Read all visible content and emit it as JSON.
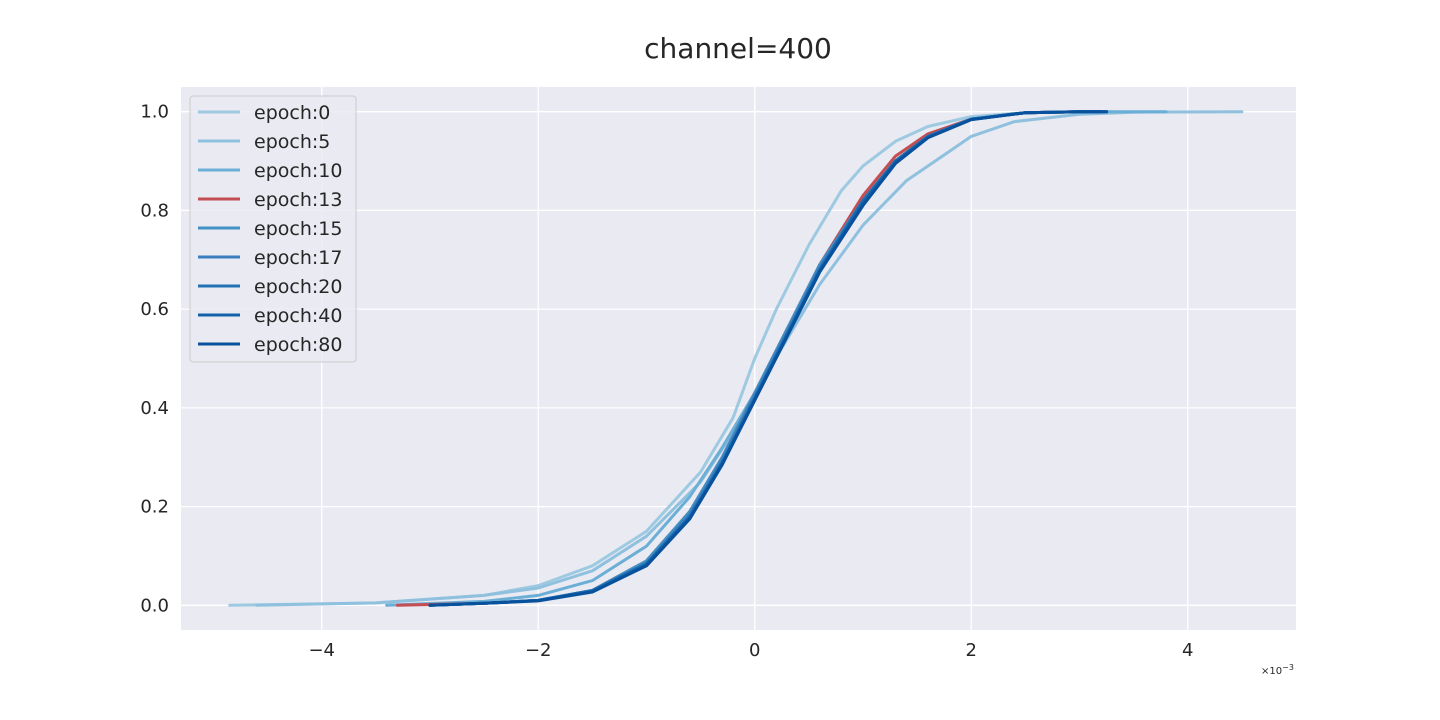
{
  "chart_data": {
    "type": "line",
    "title": "channel=400",
    "xlabel": "",
    "ylabel": "",
    "xlim": [
      -5.3,
      5.0
    ],
    "ylim": [
      -0.05,
      1.05
    ],
    "x_offset_label": "×10",
    "x_offset_exponent": "−3",
    "xticks": [
      -4,
      -2,
      0,
      2,
      4
    ],
    "xtick_labels": [
      "−4",
      "−2",
      "0",
      "2",
      "4"
    ],
    "yticks": [
      0.0,
      0.2,
      0.4,
      0.6,
      0.8,
      1.0
    ],
    "ytick_labels": [
      "0.0",
      "0.2",
      "0.4",
      "0.6",
      "0.8",
      "1.0"
    ],
    "grid": true,
    "legend_position": "top-left",
    "series": [
      {
        "name": "epoch:0",
        "color": "#9ecae1",
        "x": [
          -4.85,
          -3.5,
          -2.5,
          -2.0,
          -1.5,
          -1.0,
          -0.5,
          -0.2,
          0.0,
          0.2,
          0.5,
          0.8,
          1.0,
          1.3,
          1.6,
          2.0,
          2.5,
          3.0,
          3.3
        ],
        "y": [
          0.0,
          0.005,
          0.02,
          0.04,
          0.08,
          0.15,
          0.27,
          0.38,
          0.5,
          0.6,
          0.73,
          0.84,
          0.89,
          0.94,
          0.97,
          0.99,
          0.998,
          1.0,
          1.0
        ]
      },
      {
        "name": "epoch:5",
        "color": "#8fc1de",
        "x": [
          -4.6,
          -3.5,
          -2.5,
          -2.0,
          -1.5,
          -1.0,
          -0.5,
          -0.2,
          0.0,
          0.3,
          0.6,
          1.0,
          1.4,
          1.8,
          2.0,
          2.4,
          3.0,
          3.5,
          4.5
        ],
        "y": [
          0.0,
          0.005,
          0.02,
          0.035,
          0.07,
          0.14,
          0.25,
          0.35,
          0.43,
          0.54,
          0.65,
          0.77,
          0.86,
          0.92,
          0.95,
          0.98,
          0.995,
          0.999,
          1.0
        ]
      },
      {
        "name": "epoch:10",
        "color": "#6baed6",
        "x": [
          -3.4,
          -2.5,
          -2.0,
          -1.5,
          -1.0,
          -0.6,
          -0.3,
          0.0,
          0.3,
          0.6,
          1.0,
          1.3,
          1.6,
          2.0,
          2.5,
          3.0,
          3.8
        ],
        "y": [
          0.0,
          0.008,
          0.02,
          0.05,
          0.12,
          0.22,
          0.32,
          0.43,
          0.56,
          0.68,
          0.82,
          0.9,
          0.95,
          0.985,
          0.998,
          1.0,
          1.0
        ]
      },
      {
        "name": "epoch:13",
        "color": "#c44e52",
        "x": [
          -3.3,
          -2.5,
          -2.0,
          -1.5,
          -1.0,
          -0.6,
          -0.3,
          0.0,
          0.3,
          0.6,
          1.0,
          1.3,
          1.6,
          2.0,
          2.5,
          3.0,
          3.2
        ],
        "y": [
          0.0,
          0.004,
          0.01,
          0.03,
          0.09,
          0.19,
          0.3,
          0.43,
          0.56,
          0.69,
          0.83,
          0.91,
          0.955,
          0.985,
          0.998,
          1.0,
          1.0
        ]
      },
      {
        "name": "epoch:15",
        "color": "#4292c6",
        "x": [
          -3.0,
          -2.5,
          -2.0,
          -1.5,
          -1.0,
          -0.6,
          -0.3,
          0.0,
          0.3,
          0.6,
          1.0,
          1.3,
          1.6,
          2.0,
          2.5,
          3.0,
          3.2
        ],
        "y": [
          0.0,
          0.004,
          0.01,
          0.03,
          0.09,
          0.19,
          0.3,
          0.43,
          0.56,
          0.69,
          0.82,
          0.9,
          0.95,
          0.985,
          0.998,
          1.0,
          1.0
        ]
      },
      {
        "name": "epoch:17",
        "color": "#3a7fbf",
        "x": [
          -3.0,
          -2.5,
          -2.0,
          -1.5,
          -1.0,
          -0.6,
          -0.3,
          0.0,
          0.3,
          0.6,
          1.0,
          1.3,
          1.6,
          2.0,
          2.5,
          3.0,
          3.2
        ],
        "y": [
          0.0,
          0.004,
          0.01,
          0.03,
          0.085,
          0.185,
          0.295,
          0.425,
          0.555,
          0.685,
          0.82,
          0.9,
          0.95,
          0.985,
          0.998,
          1.0,
          1.0
        ]
      },
      {
        "name": "epoch:20",
        "color": "#2171b5",
        "x": [
          -3.0,
          -2.5,
          -2.0,
          -1.5,
          -1.0,
          -0.6,
          -0.3,
          0.0,
          0.3,
          0.6,
          1.0,
          1.3,
          1.6,
          2.0,
          2.5,
          3.0,
          3.2
        ],
        "y": [
          0.0,
          0.004,
          0.01,
          0.03,
          0.085,
          0.18,
          0.29,
          0.42,
          0.55,
          0.68,
          0.82,
          0.9,
          0.95,
          0.985,
          0.998,
          1.0,
          1.0
        ]
      },
      {
        "name": "epoch:40",
        "color": "#1361a9",
        "x": [
          -3.0,
          -2.5,
          -2.0,
          -1.5,
          -1.0,
          -0.6,
          -0.3,
          0.0,
          0.3,
          0.6,
          1.0,
          1.3,
          1.6,
          2.0,
          2.5,
          3.0,
          3.25
        ],
        "y": [
          0.0,
          0.004,
          0.01,
          0.028,
          0.082,
          0.178,
          0.288,
          0.418,
          0.548,
          0.678,
          0.815,
          0.898,
          0.948,
          0.984,
          0.998,
          1.0,
          1.0
        ]
      },
      {
        "name": "epoch:80",
        "color": "#08519c",
        "x": [
          -3.0,
          -2.5,
          -2.0,
          -1.5,
          -1.0,
          -0.6,
          -0.3,
          0.0,
          0.3,
          0.6,
          1.0,
          1.3,
          1.6,
          2.0,
          2.5,
          3.0,
          3.25
        ],
        "y": [
          0.0,
          0.004,
          0.009,
          0.027,
          0.08,
          0.175,
          0.285,
          0.415,
          0.545,
          0.675,
          0.81,
          0.895,
          0.947,
          0.984,
          0.998,
          1.0,
          1.0
        ]
      }
    ]
  }
}
